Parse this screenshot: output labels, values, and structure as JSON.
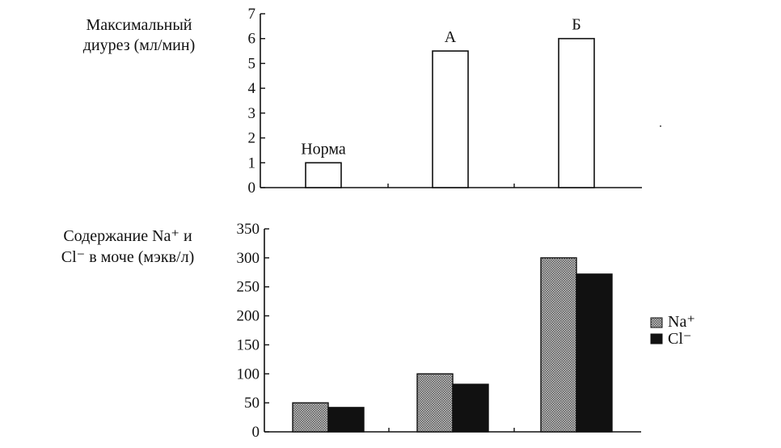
{
  "chart_data": [
    {
      "type": "bar",
      "ylabel": [
        "Максимальный",
        "диурез (мл/мин)"
      ],
      "ylim": [
        0,
        7
      ],
      "yticks": [
        0,
        1,
        2,
        3,
        4,
        5,
        6,
        7
      ],
      "categories": [
        "Норма",
        "А",
        "Б"
      ],
      "values": [
        1,
        5.5,
        6
      ]
    },
    {
      "type": "bar",
      "ylabel": [
        "Содержание Na⁺ и",
        "Cl⁻ в моче (мэкв/л)"
      ],
      "ylim": [
        0,
        350
      ],
      "yticks": [
        0,
        50,
        100,
        150,
        200,
        250,
        300,
        350
      ],
      "categories": [
        "",
        "",
        ""
      ],
      "legend_position": "right",
      "series": [
        {
          "name": "Na⁺",
          "values": [
            50,
            100,
            300
          ],
          "color": "#9a9a9a",
          "pattern": "hatched-gray"
        },
        {
          "name": "Cl⁻",
          "values": [
            42,
            82,
            272
          ],
          "color": "#111111"
        }
      ]
    }
  ]
}
